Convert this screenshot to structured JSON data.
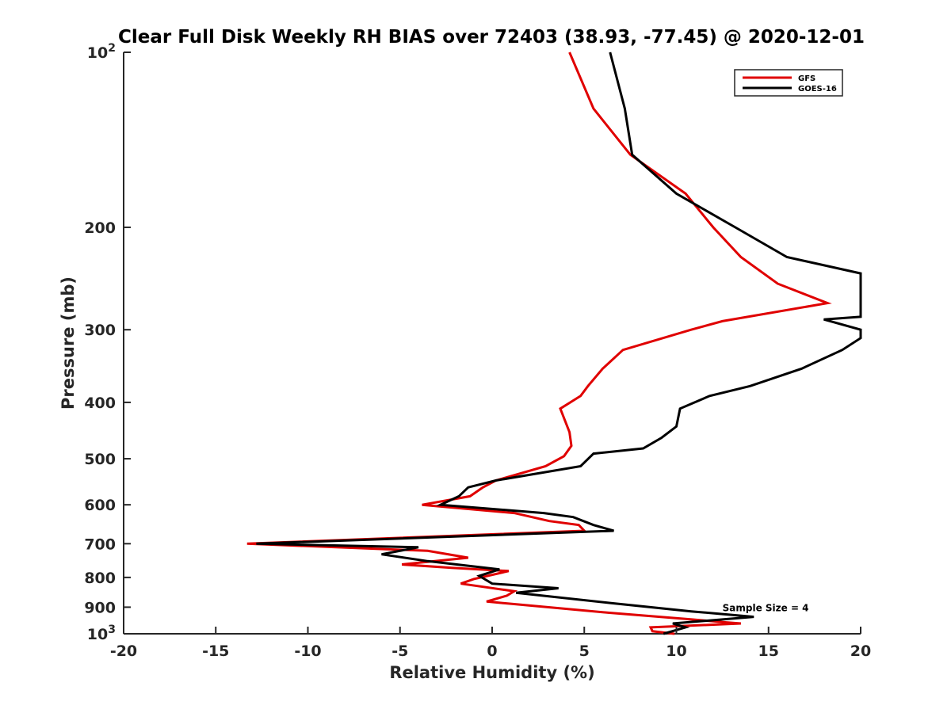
{
  "chart_data": {
    "type": "line",
    "title": "Clear Full Disk Weekly RH BIAS over 72403 (38.93, -77.45) @ 2020-12-01",
    "xlabel": "Relative Humidity (%)",
    "ylabel": "Pressure (mb)",
    "xlim": [
      -20,
      20
    ],
    "ylim": [
      100,
      1000
    ],
    "y_scale": "log",
    "y_reversed": true,
    "grid": false,
    "legend_position": "top-right",
    "x_ticks": [
      -20,
      -15,
      -10,
      -5,
      0,
      5,
      10,
      15,
      20
    ],
    "y_ticks": [
      {
        "value": 100,
        "base": "10",
        "exp": "2"
      },
      {
        "value": 200,
        "label": "200"
      },
      {
        "value": 300,
        "label": "300"
      },
      {
        "value": 400,
        "label": "400"
      },
      {
        "value": 500,
        "label": "500"
      },
      {
        "value": 600,
        "label": "600"
      },
      {
        "value": 700,
        "label": "700"
      },
      {
        "value": 800,
        "label": "800"
      },
      {
        "value": 900,
        "label": "900"
      },
      {
        "value": 1000,
        "base": "10",
        "exp": "3"
      }
    ],
    "annotation": {
      "text": "Sample Size = 4",
      "x": 12.5,
      "y": 900
    },
    "series": [
      {
        "name": "GFS",
        "color": "#e00000",
        "points": [
          [
            4.2,
            100
          ],
          [
            5.5,
            125
          ],
          [
            7.5,
            150
          ],
          [
            10.5,
            175
          ],
          [
            12,
            200
          ],
          [
            13.5,
            225
          ],
          [
            15.5,
            250
          ],
          [
            18.2,
            270
          ],
          [
            12.5,
            290
          ],
          [
            10.8,
            300
          ],
          [
            7.1,
            325
          ],
          [
            6,
            350
          ],
          [
            5.2,
            375
          ],
          [
            4.8,
            390
          ],
          [
            3.7,
            410
          ],
          [
            4.2,
            450
          ],
          [
            4.3,
            475
          ],
          [
            3.9,
            495
          ],
          [
            2.9,
            515
          ],
          [
            0.2,
            545
          ],
          [
            -0.5,
            560
          ],
          [
            -1.2,
            580
          ],
          [
            -3.8,
            600
          ],
          [
            1.2,
            620
          ],
          [
            3.1,
            640
          ],
          [
            4.7,
            650
          ],
          [
            5,
            665
          ],
          [
            -13.3,
            700
          ],
          [
            -3.5,
            720
          ],
          [
            -1.3,
            740
          ],
          [
            -4.9,
            760
          ],
          [
            -2.2,
            770
          ],
          [
            0.9,
            780
          ],
          [
            -1,
            805
          ],
          [
            -1.7,
            820
          ],
          [
            1.2,
            845
          ],
          [
            0.8,
            860
          ],
          [
            -0.3,
            880
          ],
          [
            6.3,
            920
          ],
          [
            10.9,
            945
          ],
          [
            12.5,
            955
          ],
          [
            13.5,
            960
          ],
          [
            8.6,
            975
          ],
          [
            8.7,
            990
          ],
          [
            9.9,
            1000
          ]
        ]
      },
      {
        "name": "GOES-16",
        "color": "#000000",
        "points": [
          [
            6.4,
            100
          ],
          [
            7.2,
            125
          ],
          [
            7.6,
            150
          ],
          [
            10,
            175
          ],
          [
            13.2,
            200
          ],
          [
            16,
            225
          ],
          [
            20,
            240
          ],
          [
            20,
            285
          ],
          [
            18,
            288
          ],
          [
            20,
            300
          ],
          [
            20,
            310
          ],
          [
            19,
            325
          ],
          [
            16.8,
            350
          ],
          [
            14,
            375
          ],
          [
            11.8,
            390
          ],
          [
            10.2,
            410
          ],
          [
            10,
            440
          ],
          [
            9.2,
            460
          ],
          [
            8.2,
            480
          ],
          [
            5.5,
            490
          ],
          [
            4.8,
            515
          ],
          [
            0.2,
            545
          ],
          [
            -1.3,
            560
          ],
          [
            -1.8,
            580
          ],
          [
            -2.8,
            600
          ],
          [
            2.8,
            620
          ],
          [
            4.4,
            630
          ],
          [
            5.5,
            650
          ],
          [
            6.6,
            665
          ],
          [
            -12.8,
            700
          ],
          [
            -4,
            710
          ],
          [
            -6,
            730
          ],
          [
            -3.5,
            750
          ],
          [
            0.4,
            775
          ],
          [
            -0.7,
            795
          ],
          [
            0,
            820
          ],
          [
            3.6,
            835
          ],
          [
            1.3,
            850
          ],
          [
            6.4,
            885
          ],
          [
            10.8,
            915
          ],
          [
            12.5,
            925
          ],
          [
            14.2,
            935
          ],
          [
            9.8,
            960
          ],
          [
            10.5,
            975
          ],
          [
            9.3,
            1000
          ]
        ]
      }
    ]
  }
}
